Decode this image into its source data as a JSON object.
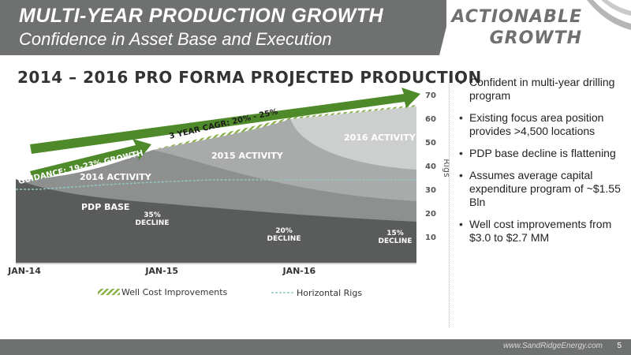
{
  "header": {
    "title": "MULTI-YEAR PRODUCTION GROWTH",
    "subtitle": "Confidence in Asset Base and Execution",
    "badge_line1": "ACTIONABLE",
    "badge_line2": "GROWTH"
  },
  "bullets": [
    "Confident in multi-year drilling program",
    "Existing focus area position provides >4,500 locations",
    "PDP base decline is flattening",
    "Assumes average capital expenditure program of ~$1.55 Bln",
    "Well cost improvements from $3.0 to $2.7 MM"
  ],
  "footer": {
    "site": "www.SandRidgeEnergy.com",
    "page": "5"
  },
  "colors": {
    "header_gray": "#6e716f",
    "arrow_green": "#4f8a2a",
    "hatch_green": "#8ab04a",
    "rig_line": "#8fc7c2",
    "pdp": "#5a5c5b",
    "activity_2014": "#8e908f",
    "activity_2015": "#a9abaa",
    "activity_2016": "#cdcfce"
  },
  "chart_data": {
    "type": "area",
    "title": "2014 – 2016 PRO FORMA PROJECTED PRODUCTION",
    "x_ticks": [
      "JAN-14",
      "JAN-15",
      "JAN-16"
    ],
    "y_right_ticks": [
      "10",
      "20",
      "30",
      "40",
      "50",
      "60",
      "70"
    ],
    "y_right_label": "Rigs",
    "y_right_range": [
      10,
      70
    ],
    "x_range": [
      "2014-01",
      "2016-12"
    ],
    "areas": [
      {
        "label": "PDP BASE"
      },
      {
        "label": "2014 ACTIVITY"
      },
      {
        "label": "2015 ACTIVITY"
      },
      {
        "label": "2016 ACTIVITY"
      },
      {
        "label": "Well Cost Improvements"
      }
    ],
    "declines": [
      {
        "label": "35% DECLINE"
      },
      {
        "label": "20% DECLINE"
      },
      {
        "label": "15% DECLINE"
      }
    ],
    "arrows": [
      {
        "label": "GUIDANCE: 19-23% GROWTH"
      },
      {
        "label": "3 YEAR CAGR: 20% - 25%"
      }
    ],
    "series": [
      {
        "name": "Horizontal Rigs",
        "x": [
          "2014-01",
          "2014-03",
          "2014-06",
          "2014-09",
          "2015-01",
          "2015-06",
          "2016-01",
          "2016-06",
          "2016-12"
        ],
        "values": [
          30,
          30,
          31,
          32,
          33,
          34,
          34,
          34,
          34
        ]
      }
    ],
    "legend": [
      {
        "label": "Well Cost Improvements"
      },
      {
        "label": "Horizontal Rigs"
      }
    ],
    "legend_position": "bottom"
  }
}
